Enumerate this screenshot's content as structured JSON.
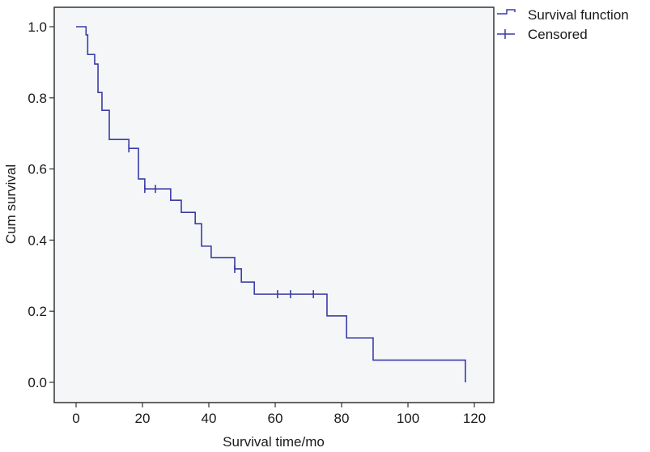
{
  "chart_data": {
    "type": "line",
    "subtype": "kaplan-meier-step",
    "title": "",
    "xlabel": "Survival time/mo",
    "ylabel": "Cum survival",
    "xlim": [
      0,
      120
    ],
    "ylim": [
      0,
      1.0
    ],
    "x_ticks": [
      0,
      20,
      40,
      60,
      80,
      100,
      120
    ],
    "x_tick_labels": [
      "0",
      "20",
      "40",
      "60",
      "80",
      "100",
      "120"
    ],
    "y_ticks": [
      0.0,
      0.2,
      0.4,
      0.6,
      0.8,
      1.0
    ],
    "y_tick_labels": [
      "0.0",
      "0.2",
      "0.4",
      "0.6",
      "0.8",
      "1.0"
    ],
    "grid": false,
    "legend_position": "top-right-outside",
    "legend": [
      {
        "label": "Survival function",
        "marker": "step-line"
      },
      {
        "label": "Censored",
        "marker": "plus"
      }
    ],
    "series": [
      {
        "name": "Survival function",
        "color": "#3a3ca6",
        "steps": [
          {
            "x": 0,
            "y": 1.0
          },
          {
            "x": 3.0,
            "y": 0.977
          },
          {
            "x": 3.5,
            "y": 0.922
          },
          {
            "x": 5.6,
            "y": 0.895
          },
          {
            "x": 6.6,
            "y": 0.815
          },
          {
            "x": 7.8,
            "y": 0.765
          },
          {
            "x": 10.0,
            "y": 0.683
          },
          {
            "x": 15.9,
            "y": 0.658
          },
          {
            "x": 18.8,
            "y": 0.572
          },
          {
            "x": 20.7,
            "y": 0.544
          },
          {
            "x": 28.5,
            "y": 0.512
          },
          {
            "x": 31.7,
            "y": 0.478
          },
          {
            "x": 35.9,
            "y": 0.446
          },
          {
            "x": 37.8,
            "y": 0.383
          },
          {
            "x": 40.7,
            "y": 0.351
          },
          {
            "x": 47.8,
            "y": 0.319
          },
          {
            "x": 49.8,
            "y": 0.282
          },
          {
            "x": 53.7,
            "y": 0.248
          },
          {
            "x": 75.6,
            "y": 0.187
          },
          {
            "x": 81.5,
            "y": 0.125
          },
          {
            "x": 89.5,
            "y": 0.0625
          },
          {
            "x": 117.3,
            "y": 0.0
          }
        ]
      },
      {
        "name": "Censored",
        "color": "#3a3ca6",
        "points": [
          {
            "x": 15.9,
            "y": 0.658
          },
          {
            "x": 20.7,
            "y": 0.544
          },
          {
            "x": 23.9,
            "y": 0.544
          },
          {
            "x": 47.8,
            "y": 0.319
          },
          {
            "x": 60.7,
            "y": 0.248
          },
          {
            "x": 64.6,
            "y": 0.248
          },
          {
            "x": 71.5,
            "y": 0.248
          }
        ]
      }
    ]
  },
  "style": {
    "line_color": "#3a3ca6",
    "plot_background": "#f4f6f8",
    "frame_color": "#333333"
  }
}
